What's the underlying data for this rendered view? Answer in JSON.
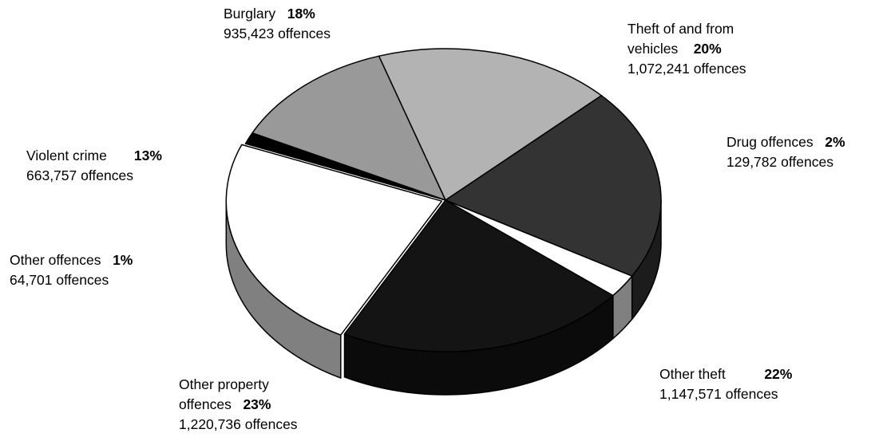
{
  "chart_data": {
    "type": "pie",
    "style": "3d-exploded-pie",
    "slices": [
      {
        "name": "Burglary",
        "name_lines": [
          "Burglary"
        ],
        "percent": 18,
        "percent_label": "18%",
        "offences": 935423,
        "detail": "935,423  offences",
        "color": "#b3b3b3"
      },
      {
        "name": "Theft of and from vehicles",
        "name_lines": [
          "Theft of and from",
          "vehicles"
        ],
        "percent": 20,
        "percent_label": "20%",
        "offences": 1072241,
        "detail": "1,072,241 offences",
        "color": "#333333"
      },
      {
        "name": "Drug offences",
        "name_lines": [
          "Drug offences"
        ],
        "percent": 2,
        "percent_label": "2%",
        "offences": 129782,
        "detail": "129,782 offences",
        "color": "#ffffff"
      },
      {
        "name": "Other theft",
        "name_lines": [
          "Other theft"
        ],
        "percent": 22,
        "percent_label": "22%",
        "offences": 1147571,
        "detail": "1,147,571 offences",
        "color": "#141414"
      },
      {
        "name": "Other property offences",
        "name_lines": [
          "Other property",
          "offences"
        ],
        "percent": 23,
        "percent_label": "23%",
        "offences": 1220736,
        "detail": "1,220,736 offences",
        "color": "#ffffff"
      },
      {
        "name": "Other offences",
        "name_lines": [
          "Other offences"
        ],
        "percent": 1,
        "percent_label": "1%",
        "offences": 64701,
        "detail": "64,701 offences",
        "color": "#000000"
      },
      {
        "name": "Violent crime",
        "name_lines": [
          "Violent crime"
        ],
        "percent": 13,
        "percent_label": "13%",
        "offences": 663757,
        "detail": "663,757 offences",
        "color": "#999999"
      }
    ]
  }
}
